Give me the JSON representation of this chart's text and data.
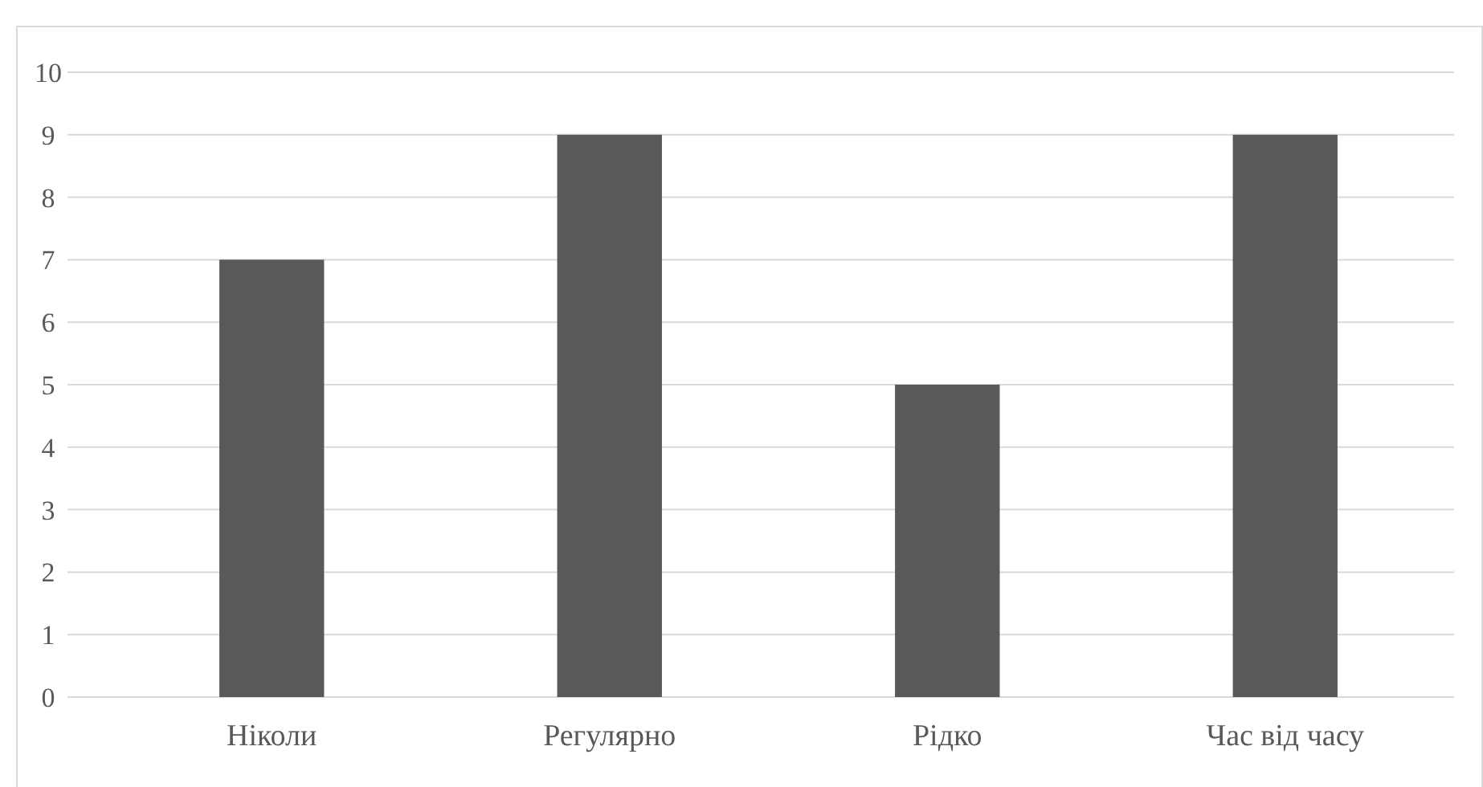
{
  "chart_data": {
    "type": "bar",
    "categories": [
      "Ніколи",
      "Регулярно",
      "Рідко",
      "Час від часу"
    ],
    "values": [
      7,
      9,
      5,
      9
    ],
    "color": "#595959",
    "ylim": [
      0,
      10
    ],
    "yticks": [
      0,
      1,
      2,
      3,
      4,
      5,
      6,
      7,
      8,
      9,
      10
    ],
    "grid": "y"
  }
}
